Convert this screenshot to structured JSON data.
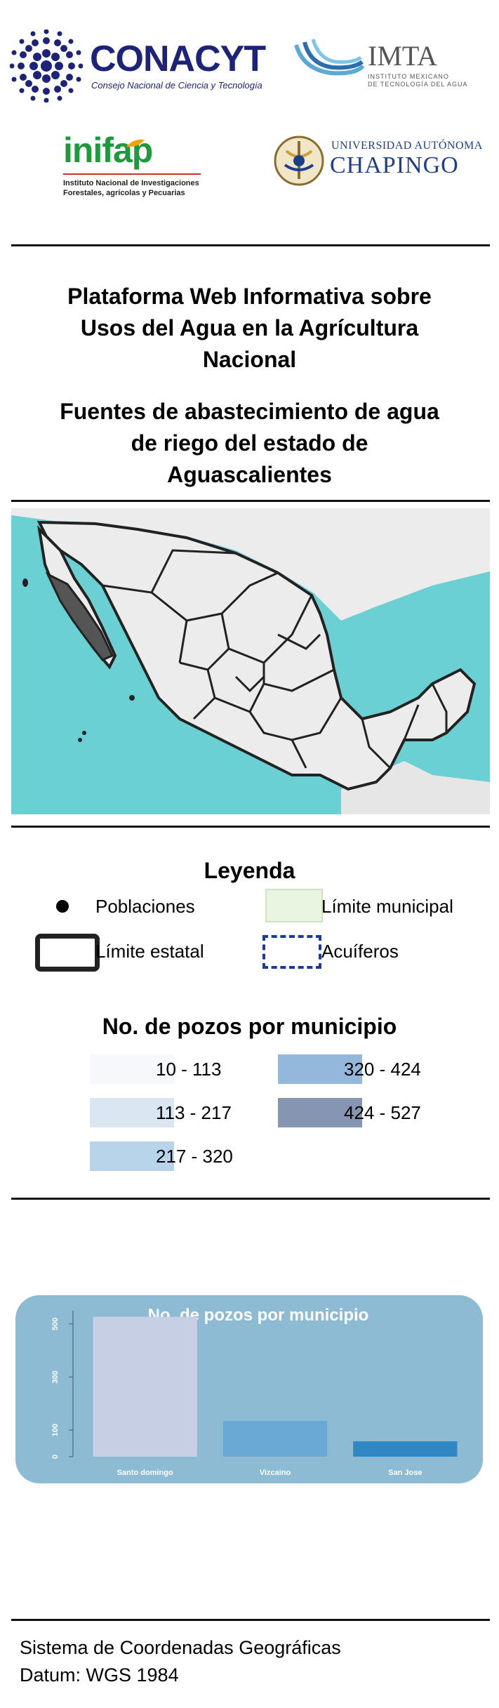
{
  "logos": {
    "conacyt": {
      "name": "CONACYT",
      "subtitle": "Consejo Nacional de Ciencia y Tecnología"
    },
    "imta": {
      "name": "IMTA",
      "subtitle_line1": "INSTITUTO MEXICANO",
      "subtitle_line2": "DE TECNOLOGÍA DEL AGUA"
    },
    "inifap": {
      "name": "inifap",
      "subtitle_line1": "Instituto Nacional de Investigaciones",
      "subtitle_line2": "Forestales, agrícolas y Pecuarias"
    },
    "chapingo": {
      "line1": "UNIVERSIDAD AUTÓNOMA",
      "line2": "CHAPINGO"
    }
  },
  "header": {
    "platform_title_line1": "Plataforma Web Informativa sobre",
    "platform_title_line2": "Usos del Agua en la Agrícultura",
    "platform_title_line3": "Nacional",
    "page_title_line1": "Fuentes de abastecimiento de agua",
    "page_title_line2": "de riego del estado de",
    "page_title_line3": "Aguascalientes"
  },
  "legend": {
    "title": "Leyenda",
    "poblaciones": "Poblaciones",
    "limite_municipal": "Límite municipal",
    "limite_estatal": "Límite estatal",
    "acuiferos": "Acuíferos",
    "wells_title": "No. de pozos por municipio",
    "classes": [
      {
        "label": "10 - 113",
        "color": "#f6f8fc"
      },
      {
        "label": "113 - 217",
        "color": "#dbe6f3"
      },
      {
        "label": "217 - 320",
        "color": "#b8d4ea"
      },
      {
        "label": "320 - 424",
        "color": "#93b8dc"
      },
      {
        "label": "424 - 527",
        "color": "#8595b2"
      }
    ]
  },
  "chart_data": {
    "type": "bar",
    "title": "No. de pozos por municipio",
    "categories": [
      "Santo domingo",
      "Vizcaino",
      "San Jose"
    ],
    "values": [
      527,
      135,
      58
    ],
    "ylim": [
      0,
      550
    ],
    "yticks": [
      0,
      100,
      300,
      500
    ],
    "bar_colors": [
      "#c7cfe4",
      "#6aa9d6",
      "#2f88c4"
    ],
    "panel_color": "#8dbbd4",
    "grid": false
  },
  "footer": {
    "line1": "Sistema de Coordenadas Geográficas",
    "line2": "Datum: WGS 1984"
  },
  "colors": {
    "ocean": "#5fcdd0",
    "land": "#ececec"
  }
}
